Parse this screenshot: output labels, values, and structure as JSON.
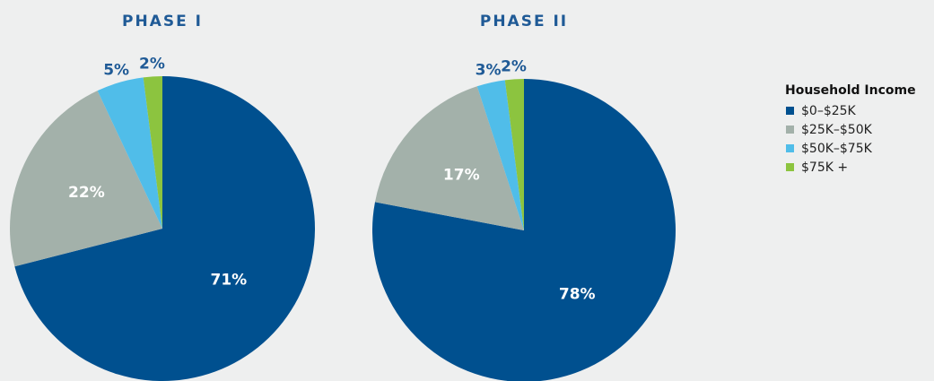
{
  "chart_data": [
    {
      "type": "pie",
      "title": "PHASE I",
      "values": [
        71,
        22,
        5,
        2
      ],
      "value_labels": [
        "71%",
        "22%",
        "5%",
        "2%"
      ]
    },
    {
      "type": "pie",
      "title": "PHASE II",
      "values": [
        78,
        17,
        3,
        2
      ],
      "value_labels": [
        "78%",
        "17%",
        "3%",
        "2%"
      ]
    }
  ],
  "legend": {
    "title": "Household Income",
    "labels": [
      "$0–$25K",
      "$25K–$50K",
      "$50K–$75K",
      "$75K +"
    ],
    "colors": [
      "#00508f",
      "#a3b1aa",
      "#50bde9",
      "#8cc43f"
    ]
  }
}
